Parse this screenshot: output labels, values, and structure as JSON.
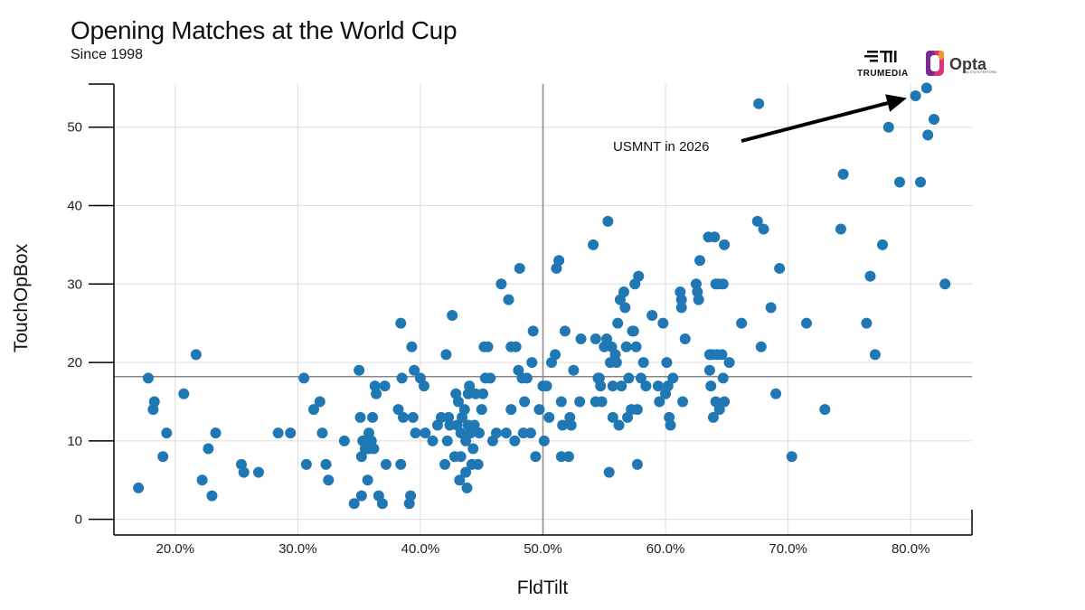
{
  "title": "Opening Matches at the World Cup",
  "subtitle": "Since 1998",
  "logos": {
    "trumedia": "TRUMEDIA",
    "opta": "Opta",
    "opta_tagline": "by STATS PERFORM"
  },
  "colors": {
    "point": "#1f77b4",
    "grid": "#dddddd",
    "refline": "#888888",
    "axis": "#000000",
    "arrow": "#000000"
  },
  "chart_data": {
    "type": "scatter",
    "title": "Opening Matches at the World Cup",
    "subtitle": "Since 1998",
    "xlabel": "FldTilt",
    "ylabel": "TouchOpBox",
    "xlim": [
      0.15,
      0.85
    ],
    "ylim": [
      -2,
      55.5
    ],
    "x_ticks": [
      0.2,
      0.3,
      0.4,
      0.5,
      0.6,
      0.7,
      0.8
    ],
    "x_tick_labels": [
      "20.0%",
      "30.0%",
      "40.0%",
      "50.0%",
      "60.0%",
      "70.0%",
      "80.0%"
    ],
    "y_ticks": [
      0,
      10,
      20,
      30,
      40,
      50
    ],
    "y_tick_labels": [
      "0",
      "10",
      "20",
      "30",
      "40",
      "50"
    ],
    "grid": true,
    "reference_lines": {
      "x": 0.5,
      "y": 18.2
    },
    "annotation": {
      "text": "USMNT in 2026",
      "target": [
        0.804,
        54
      ]
    },
    "points": [
      [
        0.17,
        4
      ],
      [
        0.178,
        18
      ],
      [
        0.182,
        14
      ],
      [
        0.183,
        15
      ],
      [
        0.19,
        8
      ],
      [
        0.193,
        11
      ],
      [
        0.207,
        16
      ],
      [
        0.217,
        21
      ],
      [
        0.222,
        5
      ],
      [
        0.227,
        9
      ],
      [
        0.23,
        3
      ],
      [
        0.233,
        11
      ],
      [
        0.254,
        7
      ],
      [
        0.256,
        6
      ],
      [
        0.268,
        6
      ],
      [
        0.284,
        11
      ],
      [
        0.294,
        11
      ],
      [
        0.305,
        18
      ],
      [
        0.307,
        7
      ],
      [
        0.313,
        14
      ],
      [
        0.318,
        15
      ],
      [
        0.32,
        11
      ],
      [
        0.323,
        7
      ],
      [
        0.325,
        5
      ],
      [
        0.338,
        10
      ],
      [
        0.346,
        2
      ],
      [
        0.35,
        19
      ],
      [
        0.351,
        13
      ],
      [
        0.352,
        3
      ],
      [
        0.352,
        8
      ],
      [
        0.353,
        10
      ],
      [
        0.355,
        9
      ],
      [
        0.357,
        5
      ],
      [
        0.358,
        11
      ],
      [
        0.358,
        9
      ],
      [
        0.36,
        10
      ],
      [
        0.361,
        13
      ],
      [
        0.362,
        9
      ],
      [
        0.363,
        17
      ],
      [
        0.364,
        16
      ],
      [
        0.366,
        3
      ],
      [
        0.369,
        2
      ],
      [
        0.371,
        17
      ],
      [
        0.372,
        7
      ],
      [
        0.382,
        14
      ],
      [
        0.384,
        25
      ],
      [
        0.384,
        7
      ],
      [
        0.385,
        18
      ],
      [
        0.386,
        13
      ],
      [
        0.391,
        2
      ],
      [
        0.392,
        3
      ],
      [
        0.393,
        22
      ],
      [
        0.394,
        13
      ],
      [
        0.395,
        19
      ],
      [
        0.396,
        11
      ],
      [
        0.4,
        18
      ],
      [
        0.403,
        17
      ],
      [
        0.404,
        11
      ],
      [
        0.41,
        10
      ],
      [
        0.414,
        12
      ],
      [
        0.417,
        13
      ],
      [
        0.42,
        7
      ],
      [
        0.421,
        21
      ],
      [
        0.422,
        10
      ],
      [
        0.423,
        13
      ],
      [
        0.424,
        12
      ],
      [
        0.426,
        26
      ],
      [
        0.428,
        8
      ],
      [
        0.429,
        16
      ],
      [
        0.43,
        12
      ],
      [
        0.431,
        15
      ],
      [
        0.432,
        5
      ],
      [
        0.433,
        8
      ],
      [
        0.433,
        11
      ],
      [
        0.434,
        13
      ],
      [
        0.436,
        14
      ],
      [
        0.437,
        10
      ],
      [
        0.437,
        6
      ],
      [
        0.438,
        4
      ],
      [
        0.439,
        16
      ],
      [
        0.439,
        12
      ],
      [
        0.44,
        17
      ],
      [
        0.441,
        11
      ],
      [
        0.442,
        7
      ],
      [
        0.443,
        9
      ],
      [
        0.444,
        12
      ],
      [
        0.445,
        16
      ],
      [
        0.447,
        7
      ],
      [
        0.448,
        11
      ],
      [
        0.45,
        14
      ],
      [
        0.451,
        16
      ],
      [
        0.452,
        22
      ],
      [
        0.453,
        18
      ],
      [
        0.455,
        22
      ],
      [
        0.457,
        18
      ],
      [
        0.459,
        10
      ],
      [
        0.462,
        11
      ],
      [
        0.466,
        30
      ],
      [
        0.47,
        11
      ],
      [
        0.472,
        28
      ],
      [
        0.474,
        14
      ],
      [
        0.474,
        22
      ],
      [
        0.477,
        10
      ],
      [
        0.478,
        22
      ],
      [
        0.48,
        19
      ],
      [
        0.481,
        32
      ],
      [
        0.483,
        18
      ],
      [
        0.484,
        11
      ],
      [
        0.485,
        15
      ],
      [
        0.487,
        18
      ],
      [
        0.49,
        11
      ],
      [
        0.491,
        20
      ],
      [
        0.492,
        24
      ],
      [
        0.494,
        8
      ],
      [
        0.497,
        14
      ],
      [
        0.5,
        17
      ],
      [
        0.501,
        10
      ],
      [
        0.503,
        17
      ],
      [
        0.505,
        13
      ],
      [
        0.507,
        20
      ],
      [
        0.51,
        21
      ],
      [
        0.511,
        32
      ],
      [
        0.513,
        33
      ],
      [
        0.515,
        8
      ],
      [
        0.515,
        15
      ],
      [
        0.516,
        12
      ],
      [
        0.518,
        24
      ],
      [
        0.521,
        8
      ],
      [
        0.522,
        13
      ],
      [
        0.523,
        12
      ],
      [
        0.525,
        19
      ],
      [
        0.53,
        15
      ],
      [
        0.531,
        23
      ],
      [
        0.541,
        35
      ],
      [
        0.543,
        15
      ],
      [
        0.543,
        23
      ],
      [
        0.545,
        18
      ],
      [
        0.546,
        18
      ],
      [
        0.547,
        17
      ],
      [
        0.548,
        15
      ],
      [
        0.55,
        22
      ],
      [
        0.552,
        23
      ],
      [
        0.553,
        38
      ],
      [
        0.554,
        6
      ],
      [
        0.555,
        20
      ],
      [
        0.556,
        22
      ],
      [
        0.557,
        13
      ],
      [
        0.557,
        17
      ],
      [
        0.559,
        21
      ],
      [
        0.56,
        20
      ],
      [
        0.561,
        25
      ],
      [
        0.562,
        12
      ],
      [
        0.563,
        28
      ],
      [
        0.564,
        17
      ],
      [
        0.566,
        29
      ],
      [
        0.567,
        27
      ],
      [
        0.568,
        22
      ],
      [
        0.569,
        13
      ],
      [
        0.57,
        18
      ],
      [
        0.572,
        14
      ],
      [
        0.573,
        24
      ],
      [
        0.574,
        24
      ],
      [
        0.575,
        30
      ],
      [
        0.576,
        22
      ],
      [
        0.577,
        14
      ],
      [
        0.577,
        7
      ],
      [
        0.578,
        31
      ],
      [
        0.58,
        18
      ],
      [
        0.582,
        20
      ],
      [
        0.584,
        17
      ],
      [
        0.589,
        26
      ],
      [
        0.594,
        17
      ],
      [
        0.595,
        15
      ],
      [
        0.598,
        25
      ],
      [
        0.6,
        16
      ],
      [
        0.601,
        20
      ],
      [
        0.602,
        17
      ],
      [
        0.603,
        13
      ],
      [
        0.604,
        12
      ],
      [
        0.606,
        18
      ],
      [
        0.612,
        29
      ],
      [
        0.613,
        27
      ],
      [
        0.613,
        28
      ],
      [
        0.614,
        15
      ],
      [
        0.616,
        23
      ],
      [
        0.625,
        30
      ],
      [
        0.626,
        29
      ],
      [
        0.627,
        28
      ],
      [
        0.628,
        33
      ],
      [
        0.635,
        36
      ],
      [
        0.636,
        21
      ],
      [
        0.636,
        19
      ],
      [
        0.637,
        17
      ],
      [
        0.638,
        21
      ],
      [
        0.639,
        13
      ],
      [
        0.64,
        36
      ],
      [
        0.641,
        30
      ],
      [
        0.641,
        15
      ],
      [
        0.642,
        21
      ],
      [
        0.643,
        30
      ],
      [
        0.644,
        14
      ],
      [
        0.646,
        21
      ],
      [
        0.647,
        30
      ],
      [
        0.647,
        18
      ],
      [
        0.648,
        15
      ],
      [
        0.648,
        35
      ],
      [
        0.652,
        20
      ],
      [
        0.662,
        25
      ],
      [
        0.675,
        38
      ],
      [
        0.676,
        53
      ],
      [
        0.678,
        22
      ],
      [
        0.68,
        37
      ],
      [
        0.686,
        27
      ],
      [
        0.69,
        16
      ],
      [
        0.693,
        32
      ],
      [
        0.703,
        8
      ],
      [
        0.715,
        25
      ],
      [
        0.73,
        14
      ],
      [
        0.743,
        37
      ],
      [
        0.745,
        44
      ],
      [
        0.764,
        25
      ],
      [
        0.767,
        31
      ],
      [
        0.771,
        21
      ],
      [
        0.777,
        35
      ],
      [
        0.782,
        50
      ],
      [
        0.791,
        43
      ],
      [
        0.804,
        54
      ],
      [
        0.808,
        43
      ],
      [
        0.813,
        55
      ],
      [
        0.814,
        49
      ],
      [
        0.819,
        51
      ],
      [
        0.828,
        30
      ]
    ]
  }
}
